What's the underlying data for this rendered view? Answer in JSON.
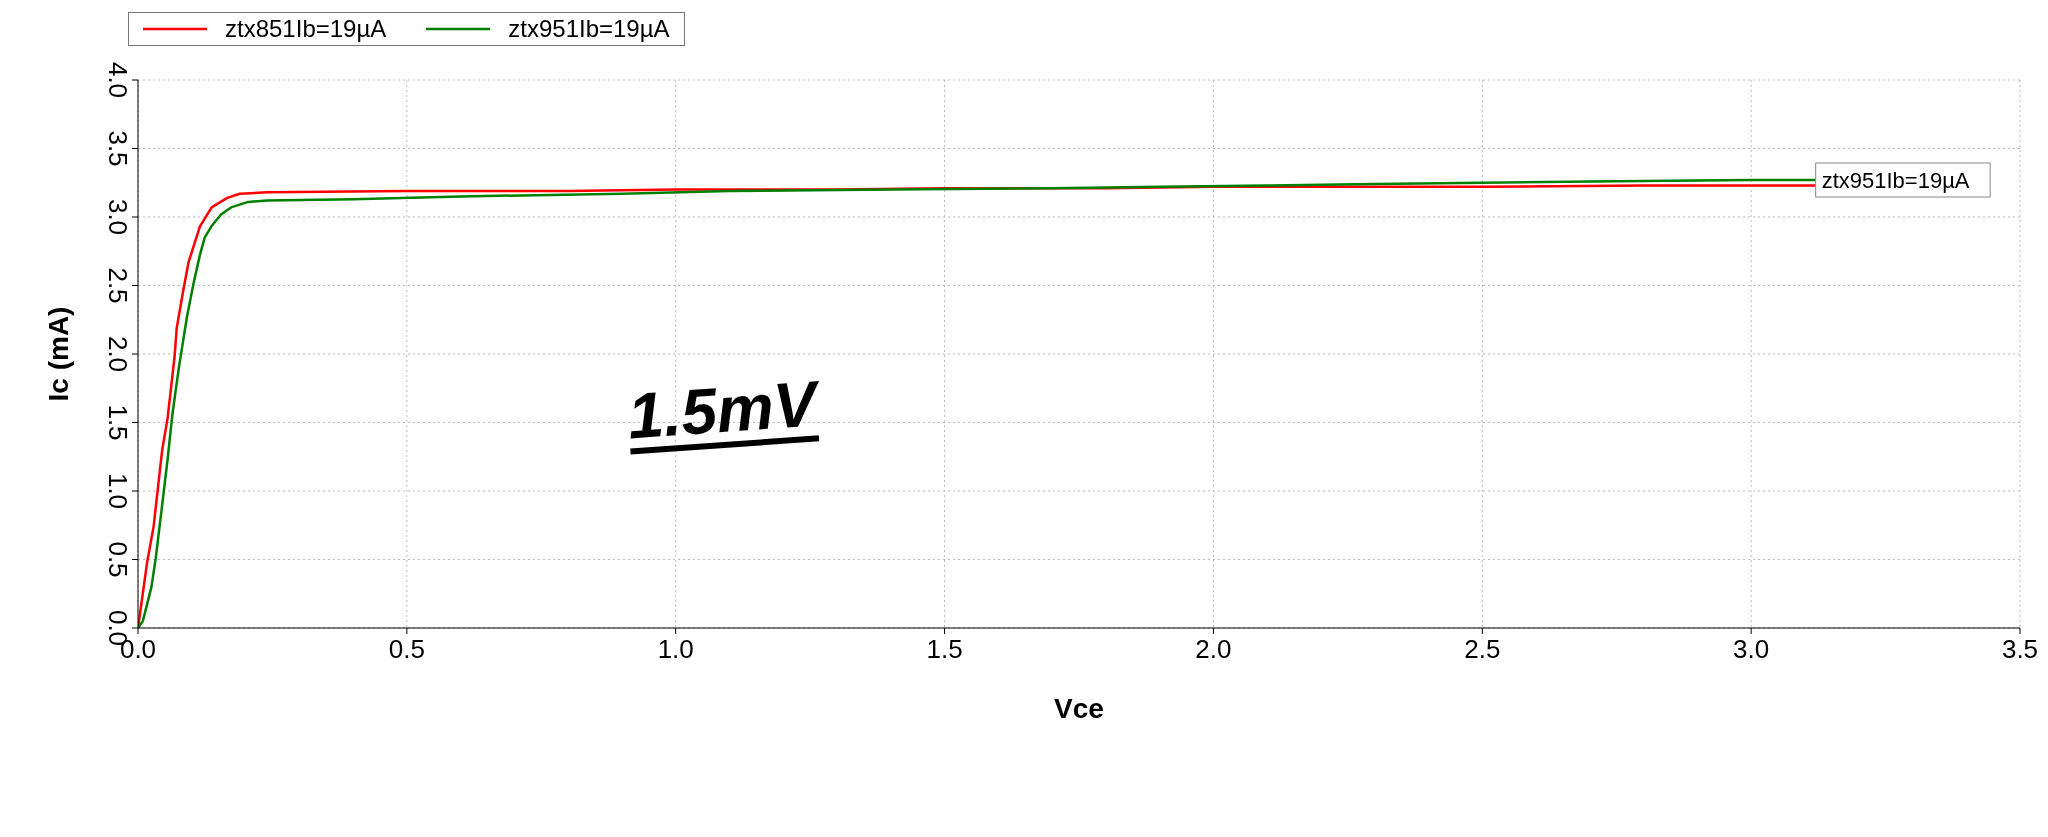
{
  "chart_data": {
    "type": "line",
    "xlabel": "Vce",
    "ylabel": "Ic (mA)",
    "xlim": [
      0,
      3.5
    ],
    "ylim": [
      0,
      4
    ],
    "xticks": [
      {
        "value": 0,
        "label": "0.0"
      },
      {
        "value": 0.5,
        "label": "0.5"
      },
      {
        "value": 1,
        "label": "1.0"
      },
      {
        "value": 1.5,
        "label": "1.5"
      },
      {
        "value": 2,
        "label": "2.0"
      },
      {
        "value": 2.5,
        "label": "2.5"
      },
      {
        "value": 3,
        "label": "3.0"
      },
      {
        "value": 3.5,
        "label": "3.5"
      }
    ],
    "yticks": [
      {
        "value": 0,
        "label": "0.0"
      },
      {
        "value": 0.5,
        "label": "0.5"
      },
      {
        "value": 1,
        "label": "1.0"
      },
      {
        "value": 1.5,
        "label": "1.5"
      },
      {
        "value": 2,
        "label": "2.0"
      },
      {
        "value": 2.5,
        "label": "2.5"
      },
      {
        "value": 3,
        "label": "3.0"
      },
      {
        "value": 3.5,
        "label": "3.5"
      },
      {
        "value": 4,
        "label": "4.0"
      }
    ],
    "grid": true,
    "legend": "top left",
    "marker": "none",
    "line_style": "solid",
    "series": [
      {
        "name": "ztx851Ib=19µA",
        "color": "#ff0000",
        "x": [
          0,
          0.017,
          0.029,
          0.045,
          0.055,
          0.068,
          0.072,
          0.084,
          0.094,
          0.115,
          0.137,
          0.166,
          0.189,
          0.24,
          0.5,
          0.8,
          1.0,
          1.3,
          1.5,
          1.8,
          2.0,
          2.3,
          2.5,
          2.8,
          3.0,
          3.12
        ],
        "values": [
          0,
          0.48,
          0.74,
          1.3,
          1.53,
          1.98,
          2.19,
          2.46,
          2.67,
          2.93,
          3.07,
          3.14,
          3.17,
          3.18,
          3.19,
          3.19,
          3.2,
          3.2,
          3.21,
          3.21,
          3.22,
          3.22,
          3.22,
          3.23,
          3.23,
          3.23
        ]
      },
      {
        "name": "ztx951Ib=19µA",
        "color": "#008000",
        "x": [
          0,
          0.009,
          0.025,
          0.033,
          0.045,
          0.055,
          0.064,
          0.076,
          0.091,
          0.103,
          0.115,
          0.124,
          0.138,
          0.155,
          0.173,
          0.205,
          0.24,
          0.4,
          0.6,
          0.9,
          1.1,
          1.4,
          1.7,
          1.9,
          2.1,
          2.3,
          2.5,
          2.7,
          3.0,
          3.12
        ],
        "values": [
          0,
          0.05,
          0.3,
          0.51,
          0.9,
          1.23,
          1.56,
          1.9,
          2.27,
          2.51,
          2.72,
          2.85,
          2.94,
          3.02,
          3.07,
          3.11,
          3.12,
          3.13,
          3.15,
          3.17,
          3.19,
          3.2,
          3.21,
          3.22,
          3.23,
          3.24,
          3.25,
          3.26,
          3.27,
          3.27
        ]
      }
    ],
    "annotations": [
      {
        "text": "ztx951Ib=19µA",
        "x": 3.12,
        "y": 3.27
      },
      "1.5mV"
    ]
  }
}
